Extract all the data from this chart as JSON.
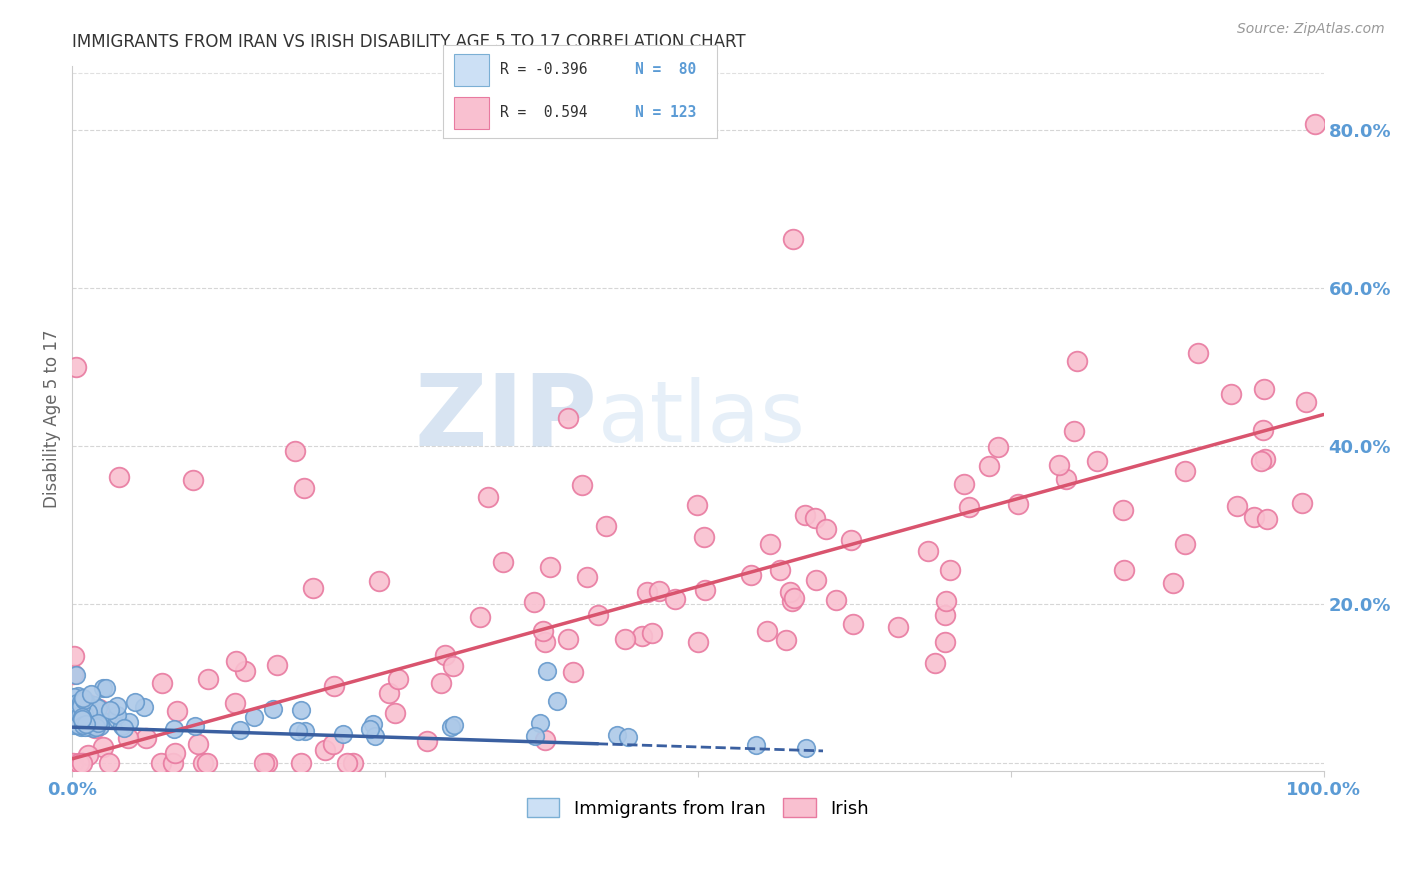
{
  "title": "IMMIGRANTS FROM IRAN VS IRISH DISABILITY AGE 5 TO 17 CORRELATION CHART",
  "source": "Source: ZipAtlas.com",
  "ylabel": "Disability Age 5 to 17",
  "watermark_zip": "ZIP",
  "watermark_atlas": "atlas",
  "xlim": [
    0,
    100
  ],
  "ylim": [
    -1,
    88
  ],
  "iran_color": "#adc9e8",
  "iran_edge_color": "#6699cc",
  "irish_color": "#f9c0d0",
  "irish_edge_color": "#e87aa0",
  "iran_R": -0.396,
  "iran_N": 80,
  "irish_R": 0.594,
  "irish_N": 123,
  "iran_line_color": "#3a5fa0",
  "irish_line_color": "#d9546e",
  "legend_iran_fill": "#cce0f5",
  "legend_irish_fill": "#f9c0d0",
  "legend_iran_edge": "#7bafd4",
  "legend_irish_edge": "#e87aa0",
  "background_color": "#ffffff",
  "grid_color": "#cccccc",
  "title_color": "#333333",
  "axis_label_color": "#666666",
  "right_axis_color": "#5b9bd5",
  "bottom_axis_color": "#5b9bd5",
  "legend_text_color": "#333333",
  "legend_N_color": "#5b9bd5",
  "iran_line_solid_end": 42,
  "iran_line_dashed_end": 60,
  "irish_line_start_y": 0.5,
  "irish_line_end_y": 44.0,
  "iran_line_start_y": 4.5,
  "iran_line_end_y": 1.5
}
